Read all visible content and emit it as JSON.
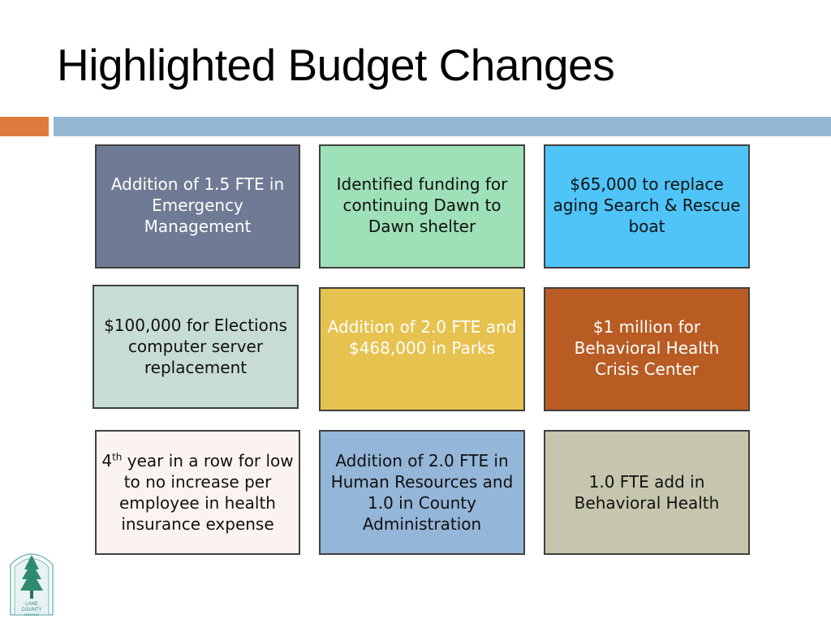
{
  "title": "Highlighted Budget Changes",
  "colors": {
    "accent_bar": "#e07a3c",
    "main_bar": "#94b6d2"
  },
  "boxes": [
    {
      "line1": "Addition of 1.5 FTE in Emergency Management",
      "bg": "#6f7a94",
      "fg": "#ffffff"
    },
    {
      "line1": "Identified funding for continuing Dawn to Dawn shelter",
      "bg": "#9ee0b8",
      "fg": "#111111"
    },
    {
      "line1": "$65,000 to replace aging Search & Rescue boat",
      "bg": "#4ec4f8",
      "fg": "#111111"
    },
    {
      "line1": "$100,000 for Elections computer server replacement",
      "bg": "#c8dcd6",
      "fg": "#111111"
    },
    {
      "line1": "Addition of 2.0 FTE and $468,000 in Parks",
      "bg": "#e6c24e",
      "fg": "#ffffff"
    },
    {
      "line1": "$1 million for Behavioral Health Crisis Center",
      "bg": "#b85c24",
      "fg": "#ffffff"
    },
    {
      "ordinal": "4",
      "superscript": "th",
      "line1": " year in a row for low to no increase per employee in health insurance expense",
      "bg": "#fbf3ef",
      "fg": "#111111"
    },
    {
      "line1": "Addition of 2.0 FTE in Human Resources and 1.0 in County Administration",
      "bg": "#94b6d8",
      "fg": "#111111"
    },
    {
      "line1": "1.0 FTE add in Behavioral Health",
      "bg": "#c6c6ae",
      "fg": "#111111"
    }
  ],
  "logo": {
    "line1": "LANE",
    "line2": "COUNTY",
    "line3": "OREGON",
    "color": "#2e8c8c"
  }
}
